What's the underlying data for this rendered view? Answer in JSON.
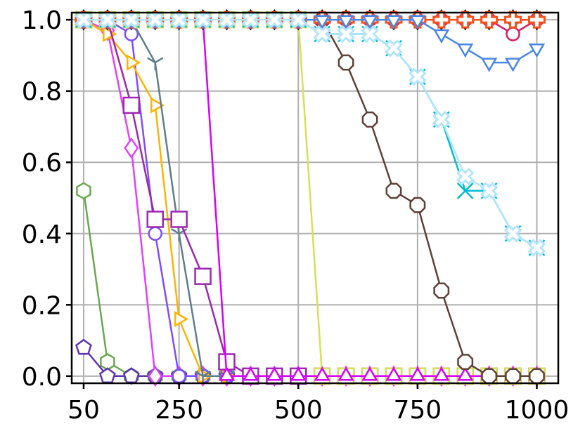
{
  "chart_data": {
    "type": "line",
    "title": "",
    "xlabel": "",
    "ylabel": "",
    "xlim": [
      25,
      1045
    ],
    "ylim": [
      -0.02,
      1.02
    ],
    "grid": true,
    "legend": "none",
    "x_ticks": [
      50,
      250,
      500,
      750,
      1000
    ],
    "x_tick_labels": [
      "50",
      "250",
      "500",
      "750",
      "1000"
    ],
    "y_ticks": [
      0.0,
      0.2,
      0.4,
      0.6,
      0.8,
      1.0
    ],
    "y_tick_labels": [
      "0.0",
      "0.2",
      "0.4",
      "0.6",
      "0.8",
      "1.0"
    ],
    "x": [
      50,
      100,
      150,
      200,
      250,
      300,
      350,
      400,
      450,
      500,
      550,
      600,
      650,
      700,
      750,
      800,
      850,
      900,
      950,
      1000
    ],
    "series": [
      {
        "color": "#6aa84f",
        "marker": "hexagon",
        "values": [
          0.52,
          0.04,
          0,
          0,
          0,
          0,
          0,
          0,
          0,
          0,
          0,
          0,
          0,
          0,
          0,
          0,
          0,
          0,
          0,
          0
        ]
      },
      {
        "color": "#5e35b1",
        "marker": "pentagon",
        "values": [
          0.08,
          0,
          0,
          0,
          0,
          0,
          0,
          0,
          0,
          0,
          0,
          0,
          0,
          0,
          0,
          0,
          0,
          0,
          0,
          0
        ]
      },
      {
        "color": "#e040fb",
        "marker": "diamond",
        "values": [
          1.0,
          0.97,
          0.64,
          0,
          0,
          0,
          0,
          0,
          0,
          0,
          0,
          0,
          0,
          0,
          0,
          0,
          0,
          0,
          0,
          0
        ]
      },
      {
        "color": "#7c4dff",
        "marker": "circle",
        "values": [
          1.0,
          1.0,
          0.96,
          0.4,
          0,
          0,
          0,
          0,
          0,
          0,
          0,
          0,
          0,
          0,
          0,
          0,
          0,
          0,
          0,
          0
        ]
      },
      {
        "color": "#ffb300",
        "marker": "triangle-right",
        "values": [
          1.0,
          0.96,
          0.88,
          0.76,
          0.16,
          0,
          0,
          0,
          0,
          0,
          0,
          0,
          0,
          0,
          0,
          0,
          0,
          0,
          0,
          0
        ]
      },
      {
        "color": "#607d8b",
        "marker": "tri-down",
        "values": [
          1.0,
          1.0,
          1.0,
          0.88,
          0.4,
          0,
          0,
          0,
          0,
          0,
          0,
          0,
          0,
          0,
          0,
          0,
          0,
          0,
          0,
          0
        ]
      },
      {
        "color": "#9c27b0",
        "marker": "square",
        "values": [
          1.0,
          1.0,
          0.76,
          0.44,
          0.44,
          0.28,
          0.04,
          0,
          0,
          0,
          0,
          0,
          0,
          0,
          0,
          0,
          0,
          0,
          0,
          0
        ]
      },
      {
        "color": "#d4e157",
        "marker": "square",
        "values": [
          1.0,
          1.0,
          1.0,
          1.0,
          1.0,
          1.0,
          1.0,
          1.0,
          1.0,
          1.0,
          0,
          0,
          0,
          0,
          0,
          0,
          0,
          0,
          0,
          0
        ]
      },
      {
        "color": "#d500f9",
        "marker": "triangle-up",
        "values": [
          1.0,
          1.0,
          1.0,
          1.0,
          1.0,
          1.0,
          0,
          0,
          0,
          0,
          0,
          0,
          0,
          0,
          0,
          0,
          0,
          0,
          0,
          0
        ]
      },
      {
        "color": "#5d4037",
        "marker": "octagon",
        "values": [
          1.0,
          1.0,
          1.0,
          1.0,
          1.0,
          1.0,
          1.0,
          1.0,
          1.0,
          1.0,
          1.0,
          0.88,
          0.72,
          0.52,
          0.48,
          0.24,
          0.04,
          0,
          0,
          0
        ]
      },
      {
        "color": "#000000",
        "marker": "diamond",
        "values": [
          1.0,
          1.0,
          1.0,
          1.0,
          1.0,
          1.0,
          1.0,
          1.0,
          1.0,
          1.0,
          1.0,
          1.0,
          1.0,
          1.0,
          1.0,
          1.0,
          1.0,
          1.0,
          1.0,
          1.0
        ]
      },
      {
        "color": "#d81b60",
        "marker": "circle",
        "values": [
          1.0,
          1.0,
          1.0,
          1.0,
          1.0,
          1.0,
          1.0,
          1.0,
          1.0,
          1.0,
          1.0,
          1.0,
          1.0,
          1.0,
          1.0,
          1.0,
          1.0,
          1.0,
          0.96,
          1.0
        ]
      },
      {
        "color": "#f4511e",
        "marker": "plus-filled",
        "values": [
          1.0,
          1.0,
          1.0,
          1.0,
          1.0,
          1.0,
          1.0,
          1.0,
          1.0,
          1.0,
          1.0,
          1.0,
          1.0,
          1.0,
          1.0,
          1.0,
          1.0,
          1.0,
          1.0,
          1.0
        ]
      },
      {
        "color": "#4a86e8",
        "marker": "triangle-down",
        "values": [
          1.0,
          1.0,
          1.0,
          1.0,
          1.0,
          1.0,
          1.0,
          1.0,
          1.0,
          1.0,
          1.0,
          1.0,
          1.0,
          1.0,
          1.0,
          0.96,
          0.92,
          0.88,
          0.88,
          0.92
        ]
      },
      {
        "color": "#00bcd4",
        "marker": "x",
        "values": [
          1.0,
          1.0,
          1.0,
          1.0,
          1.0,
          1.0,
          1.0,
          1.0,
          1.0,
          1.0,
          0.96,
          0.96,
          0.96,
          0.92,
          0.84,
          0.72,
          0.52,
          0.52,
          0.4,
          0.36
        ]
      },
      {
        "color": "#b3e5fc",
        "marker": "x-filled",
        "values": [
          1.0,
          1.0,
          1.0,
          1.0,
          1.0,
          1.0,
          1.0,
          1.0,
          1.0,
          1.0,
          0.96,
          0.96,
          0.96,
          0.92,
          0.84,
          0.72,
          0.56,
          0.52,
          0.4,
          0.36
        ]
      }
    ]
  }
}
